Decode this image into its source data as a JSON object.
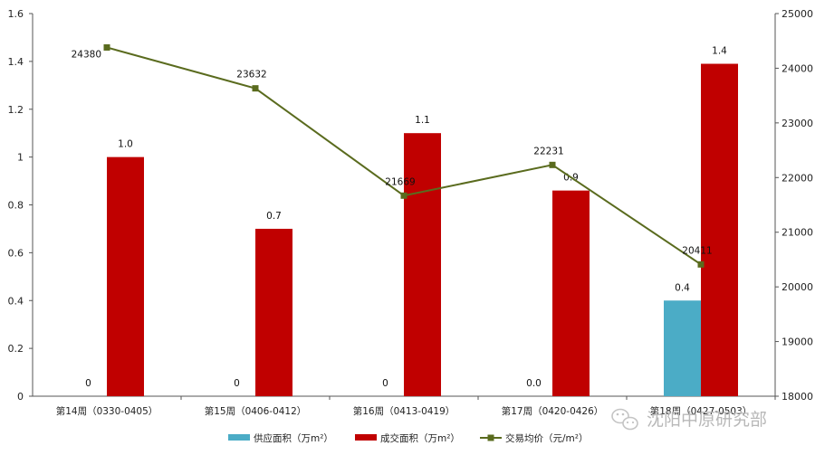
{
  "chart_data": {
    "type": "bar",
    "categories": [
      "第14周（0330-0405）",
      "第15周（0406-0412）",
      "第16周（0413-0419）",
      "第17周（0420-0426）",
      "第18周（0427-0503）"
    ],
    "series": [
      {
        "name": "供应面积（万m²）",
        "type": "bar",
        "axis": "left",
        "color": "#4bacc6",
        "values": [
          0,
          0,
          0,
          0.0,
          0.4
        ],
        "labels": [
          "0",
          "0",
          "0",
          "0.0",
          "0.4"
        ]
      },
      {
        "name": "成交面积（万m²）",
        "type": "bar",
        "axis": "left",
        "color": "#c00000",
        "values": [
          1.0,
          0.7,
          1.1,
          0.86,
          1.39
        ],
        "labels": [
          "1.0",
          "0.7",
          "1.1",
          "0.9",
          "1.4"
        ]
      },
      {
        "name": "交易均价（元/m²）",
        "type": "line",
        "axis": "right",
        "color": "#5a6b1e",
        "values": [
          24380,
          23632,
          21669,
          22231,
          20411
        ],
        "labels": [
          "24380",
          "23632",
          "21669",
          "22231",
          "20411"
        ]
      }
    ],
    "y_left": {
      "lim": [
        0,
        1.6
      ],
      "ticks": [
        "0",
        "0.2",
        "0.4",
        "0.6",
        "0.8",
        "1",
        "1.2",
        "1.4",
        "1.6"
      ]
    },
    "y_right": {
      "lim": [
        18000,
        25000
      ],
      "ticks": [
        "18000",
        "19000",
        "20000",
        "21000",
        "22000",
        "23000",
        "24000",
        "25000"
      ]
    },
    "legend_position": "bottom",
    "grid": false
  },
  "watermark": {
    "text": "沈阳中原研究部",
    "icon": "wechat-icon"
  }
}
